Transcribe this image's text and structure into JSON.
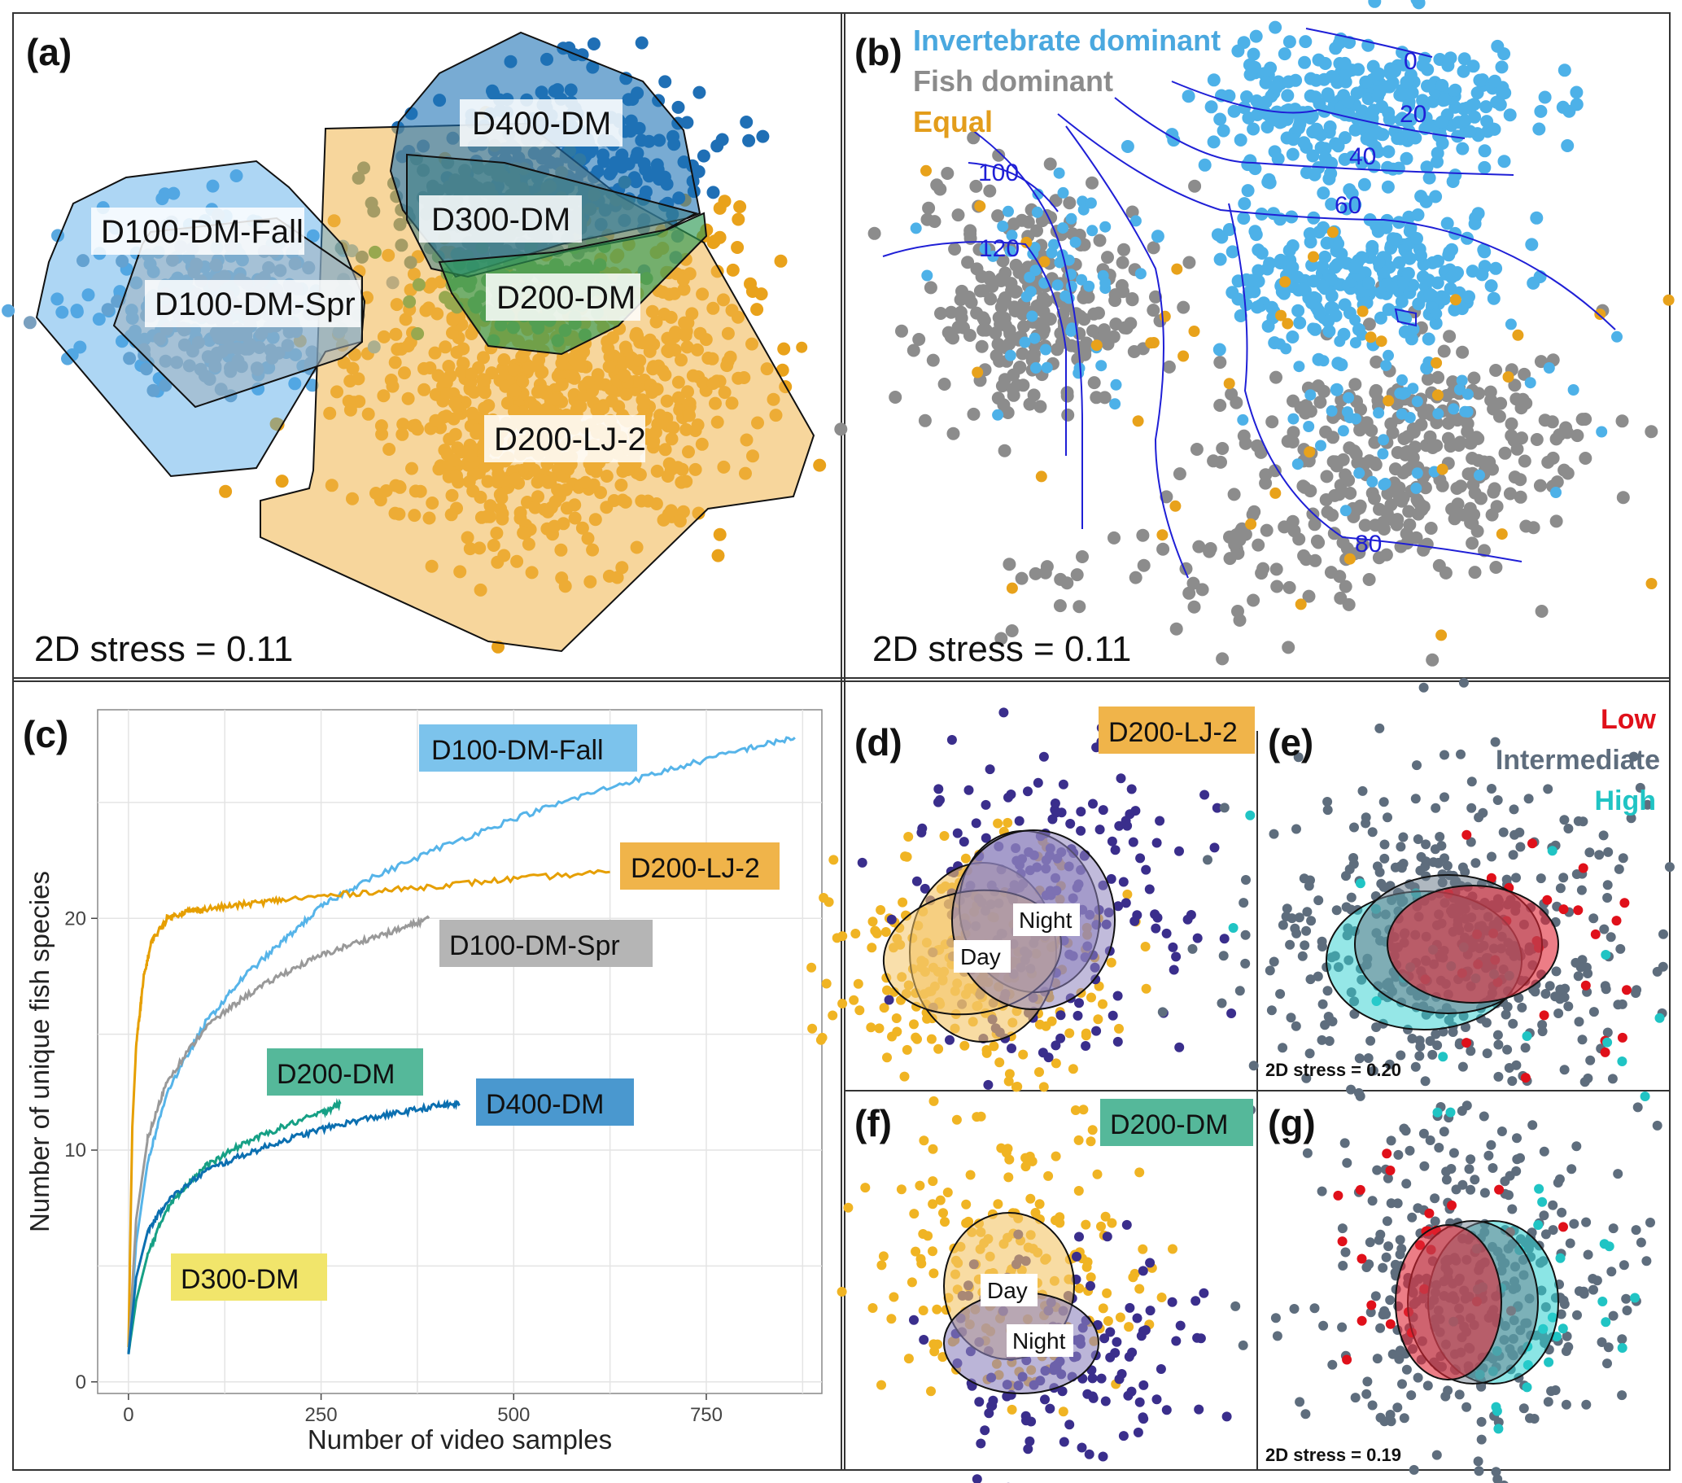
{
  "panels": {
    "a": {
      "label": "(a)",
      "stress": "2D stress = 0.11",
      "groups": [
        {
          "name": "D100-DM-Fall",
          "color": "#5aa9e0"
        },
        {
          "name": "D100-DM-Spr",
          "color": "#8fa8b8"
        },
        {
          "name": "D400-DM",
          "color": "#1f6fb5"
        },
        {
          "name": "D300-DM",
          "color": "#4a7f86"
        },
        {
          "name": "D200-DM",
          "color": "#2e9a55"
        },
        {
          "name": "D200-LJ-2",
          "color": "#e9a21b"
        }
      ]
    },
    "b": {
      "label": "(b)",
      "stress": "2D stress = 0.11",
      "legend": [
        {
          "text": "Invertebrate dominant",
          "color": "#4aa8df"
        },
        {
          "text": "Fish dominant",
          "color": "#8c8c8c"
        },
        {
          "text": "Equal",
          "color": "#e39d1b"
        }
      ],
      "contour_labels": [
        "0",
        "20",
        "40",
        "60",
        "80",
        "100",
        "120"
      ],
      "colors": {
        "invertebrate": "#4db1e8",
        "fish": "#8c8c8c",
        "equal": "#e8a21b",
        "contour": "#1f1fd6"
      }
    },
    "c": {
      "label": "(c)",
      "curve_labels": {
        "fall": "D100-DM-Fall",
        "lj2": "D200-LJ-2",
        "spr": "D100-DM-Spr",
        "d200": "D200-DM",
        "d400": "D400-DM",
        "d300": "D300-DM"
      }
    },
    "d": {
      "label": "(d)",
      "site": "D200-LJ-2",
      "ellipse_labels": [
        "Night",
        "Day"
      ]
    },
    "e": {
      "label": "(e)",
      "stress": "2D stress = 0.20",
      "legend": [
        {
          "text": "Low",
          "color": "#e0101a"
        },
        {
          "text": "Intermediate",
          "color": "#5e6d7d"
        },
        {
          "text": "High",
          "color": "#20c4c4"
        }
      ]
    },
    "f": {
      "label": "(f)",
      "site": "D200-DM",
      "ellipse_labels": [
        "Day",
        "Night"
      ]
    },
    "g": {
      "label": "(g)",
      "stress": "2D stress = 0.19"
    }
  },
  "chart_data": [
    {
      "type": "scatter",
      "panel": "a",
      "title": "",
      "groups": [
        "D100-DM-Fall",
        "D100-DM-Spr",
        "D400-DM",
        "D300-DM",
        "D200-DM",
        "D200-LJ-2"
      ],
      "convex_hulls": true,
      "stress": 0.11
    },
    {
      "type": "scatter",
      "panel": "b",
      "categories": [
        "Invertebrate dominant",
        "Fish dominant",
        "Equal"
      ],
      "contour_levels": [
        0,
        20,
        40,
        60,
        80,
        100,
        120
      ],
      "stress": 0.11
    },
    {
      "type": "line",
      "panel": "c",
      "xlabel": "Number of video samples",
      "ylabel": "Number of unique fish species",
      "xlim": [
        -40,
        900
      ],
      "ylim": [
        -0.5,
        29
      ],
      "xticks": [
        0,
        250,
        500,
        750
      ],
      "yticks": [
        0,
        10,
        20
      ],
      "grid": true,
      "series": [
        {
          "name": "D100-DM-Fall",
          "color": "#56b4e9",
          "x": [
            0,
            10,
            25,
            50,
            100,
            150,
            200,
            250,
            300,
            400,
            500,
            600,
            700,
            800,
            865
          ],
          "y": [
            1.2,
            6,
            9.5,
            12.5,
            15.5,
            17.5,
            19,
            20.5,
            21.5,
            23,
            24.3,
            25.4,
            26.4,
            27.3,
            27.8
          ]
        },
        {
          "name": "D200-LJ-2",
          "color": "#e69f00",
          "x": [
            0,
            5,
            10,
            20,
            30,
            50,
            75,
            100,
            150,
            200,
            300,
            400,
            500,
            625
          ],
          "y": [
            1.5,
            11,
            14.5,
            17.5,
            19,
            20,
            20.3,
            20.4,
            20.6,
            20.8,
            21.1,
            21.4,
            21.7,
            22
          ]
        },
        {
          "name": "D100-DM-Spr",
          "color": "#999999",
          "x": [
            0,
            10,
            25,
            50,
            100,
            150,
            200,
            250,
            300,
            350,
            390
          ],
          "y": [
            1.2,
            7,
            10.5,
            13,
            15.3,
            16.6,
            17.6,
            18.4,
            19,
            19.5,
            20
          ]
        },
        {
          "name": "D200-DM",
          "color": "#16a085",
          "x": [
            0,
            10,
            25,
            50,
            75,
            100,
            150,
            200,
            250,
            275
          ],
          "y": [
            1.2,
            3.5,
            5.5,
            7.5,
            8.5,
            9.3,
            10.3,
            11,
            11.6,
            12
          ]
        },
        {
          "name": "D400-DM",
          "color": "#0b6fb0",
          "x": [
            0,
            10,
            25,
            50,
            100,
            150,
            200,
            250,
            300,
            350,
            400,
            430
          ],
          "y": [
            1.2,
            4.5,
            6.5,
            7.8,
            9.1,
            9.8,
            10.4,
            10.9,
            11.3,
            11.6,
            11.9,
            12
          ]
        },
        {
          "name": "D300-DM",
          "color": "#f0e442",
          "x": [],
          "y": []
        }
      ]
    },
    {
      "type": "scatter",
      "panel": "d",
      "groups": [
        "Day",
        "Night"
      ],
      "colors": {
        "Day": "#f0b423",
        "Night": "#3a2e8c"
      }
    },
    {
      "type": "scatter",
      "panel": "e",
      "groups": [
        "Low",
        "Intermediate",
        "High"
      ],
      "stress": 0.2
    },
    {
      "type": "scatter",
      "panel": "f",
      "groups": [
        "Day",
        "Night"
      ],
      "colors": {
        "Day": "#f0b423",
        "Night": "#3a2e8c"
      }
    },
    {
      "type": "scatter",
      "panel": "g",
      "groups": [
        "Low",
        "Intermediate",
        "High"
      ],
      "stress": 0.19
    }
  ]
}
